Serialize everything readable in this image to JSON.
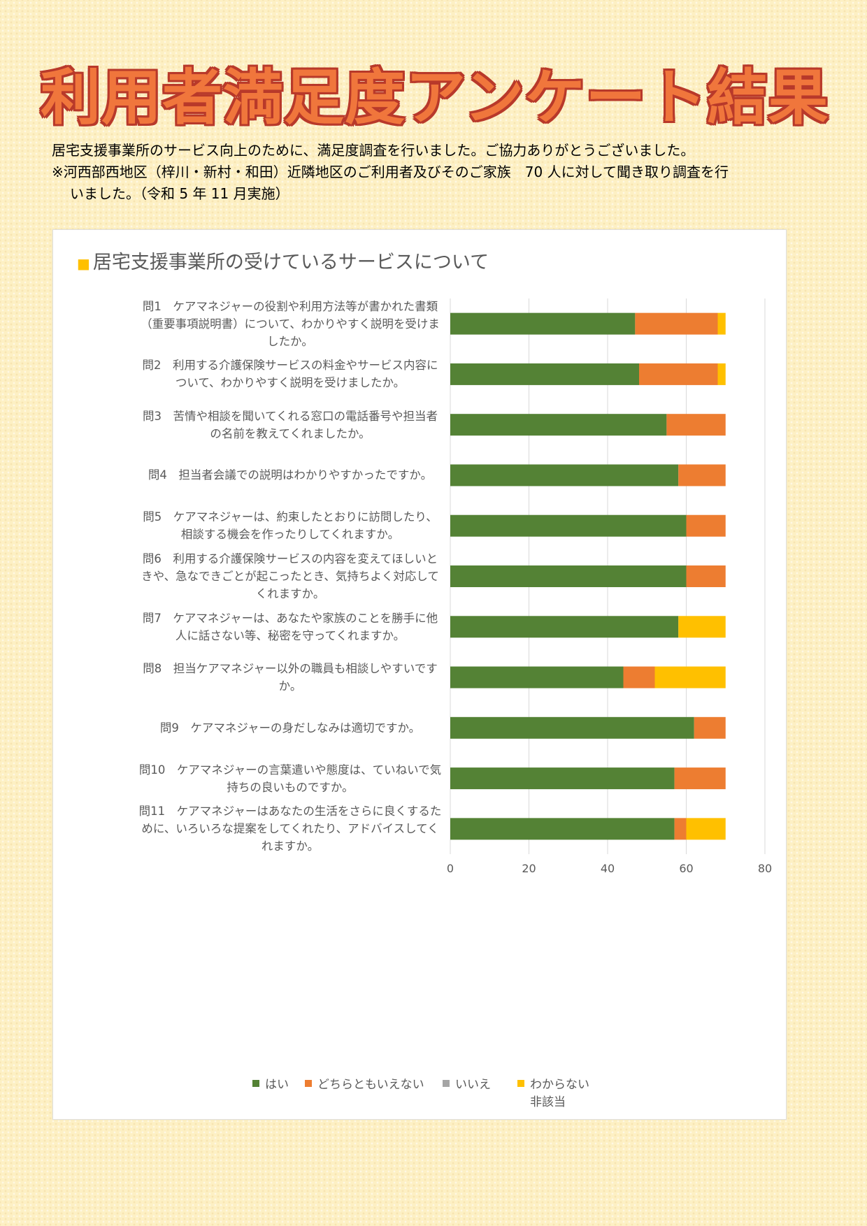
{
  "page": {
    "title": "利用者満足度アンケート結果",
    "intro_line1": "居宅支援事業所のサービス向上のために、満足度調査を行いました。ご協力ありがとうございました。",
    "intro_line2": "※河西部西地区（梓川・新村・和田）近隣地区のご利用者及びそのご家族　70 人に対して聞き取り調査を行",
    "intro_line3": "いました。（令和 5 年 11 月実施）"
  },
  "chart_data": {
    "type": "bar",
    "orientation": "horizontal",
    "stacked": true,
    "title_marker": "■",
    "title": "居宅支援事業所の受けているサービスについて",
    "xlim": [
      0,
      80
    ],
    "x_ticks": [
      "0",
      "20",
      "40",
      "60",
      "80"
    ],
    "grid": true,
    "legend_position": "bottom",
    "categories": [
      [
        "問1　ケアマネジャーの役割や利用方法等が書かれた書類",
        "（重要事項説明書）について、わかりやすく説明を受けま",
        "したか。"
      ],
      [
        "問2　利用する介護保険サービスの料金やサービス内容に",
        "ついて、わかりやすく説明を受けましたか。"
      ],
      [
        "問3　苦情や相談を聞いてくれる窓口の電話番号や担当者",
        "の名前を教えてくれましたか。"
      ],
      [
        "問4　担当者会議での説明はわかりやすかったですか。"
      ],
      [
        "問5　ケアマネジャーは、約束したとおりに訪問したり、",
        "相談する機会を作ったりしてくれますか。"
      ],
      [
        "問6　利用する介護保険サービスの内容を変えてほしいと",
        "きや、急なできごとが起こったとき、気持ちよく対応して",
        "くれますか。"
      ],
      [
        "問7　ケアマネジャーは、あなたや家族のことを勝手に他",
        "人に話さない等、秘密を守ってくれますか。"
      ],
      [
        "問8　担当ケアマネジャー以外の職員も相談しやすいです",
        "か。"
      ],
      [
        "問9　ケアマネジャーの身だしなみは適切ですか。"
      ],
      [
        "問10　ケアマネジャーの言葉遣いや態度は、ていねいで気",
        "持ちの良いものですか。"
      ],
      [
        "問11　ケアマネジャーはあなたの生活をさらに良くするた",
        "めに、いろいろな提案をしてくれたり、アドバイスしてく",
        "れますか。"
      ]
    ],
    "series": [
      {
        "name": "はい",
        "color": "#548235",
        "values": [
          47,
          48,
          55,
          58,
          60,
          60,
          58,
          44,
          62,
          57,
          57
        ]
      },
      {
        "name": "どちらともいえない",
        "color": "#ed7d31",
        "values": [
          21,
          20,
          15,
          12,
          10,
          10,
          0,
          8,
          8,
          13,
          3
        ]
      },
      {
        "name": "いいえ",
        "color": "#a5a5a5",
        "values": [
          0,
          0,
          0,
          0,
          0,
          0,
          0,
          0,
          0,
          0,
          0
        ]
      },
      {
        "name": "わからない",
        "name_line2": "非該当",
        "color": "#ffc000",
        "values": [
          2,
          2,
          0,
          0,
          0,
          0,
          12,
          18,
          0,
          0,
          10
        ]
      }
    ]
  }
}
